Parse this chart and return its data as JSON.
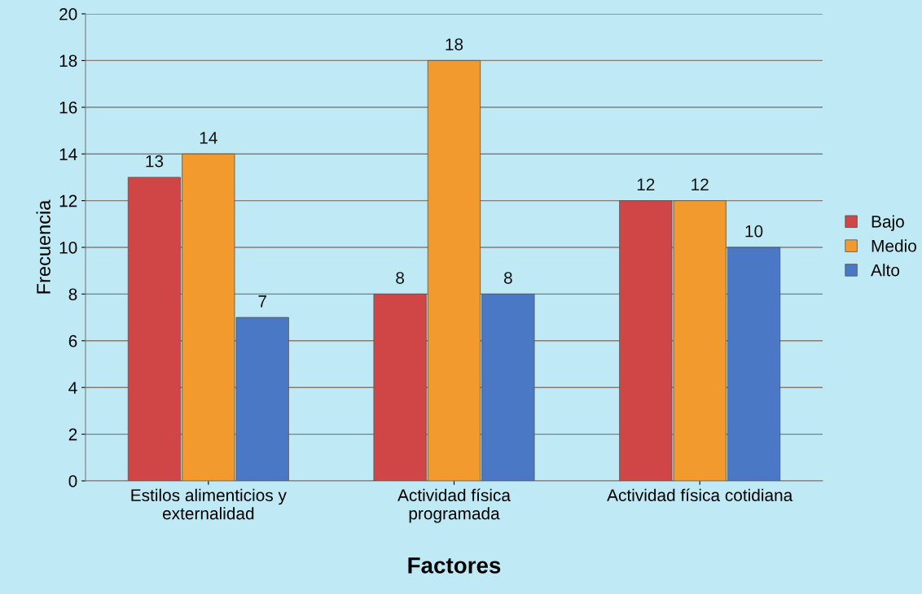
{
  "chart_data": {
    "type": "bar",
    "xlabel": "Factores",
    "ylabel": "Frecuencia",
    "categories": [
      "Estilos alimenticios y\nexternalidad",
      "Actividad física\nprogramada",
      "Actividad física cotidiana"
    ],
    "series": [
      {
        "name": "Bajo",
        "color": "#d04545",
        "values": [
          13,
          8,
          12
        ]
      },
      {
        "name": "Medio",
        "color": "#f39a2e",
        "values": [
          14,
          18,
          12
        ]
      },
      {
        "name": "Alto",
        "color": "#4a78c4",
        "values": [
          7,
          8,
          10
        ]
      }
    ],
    "ylim": [
      0,
      20
    ],
    "yticks": [
      0,
      2,
      4,
      6,
      8,
      10,
      12,
      14,
      16,
      18,
      20
    ],
    "grid": "y",
    "legend": "right",
    "data_labels": true
  }
}
